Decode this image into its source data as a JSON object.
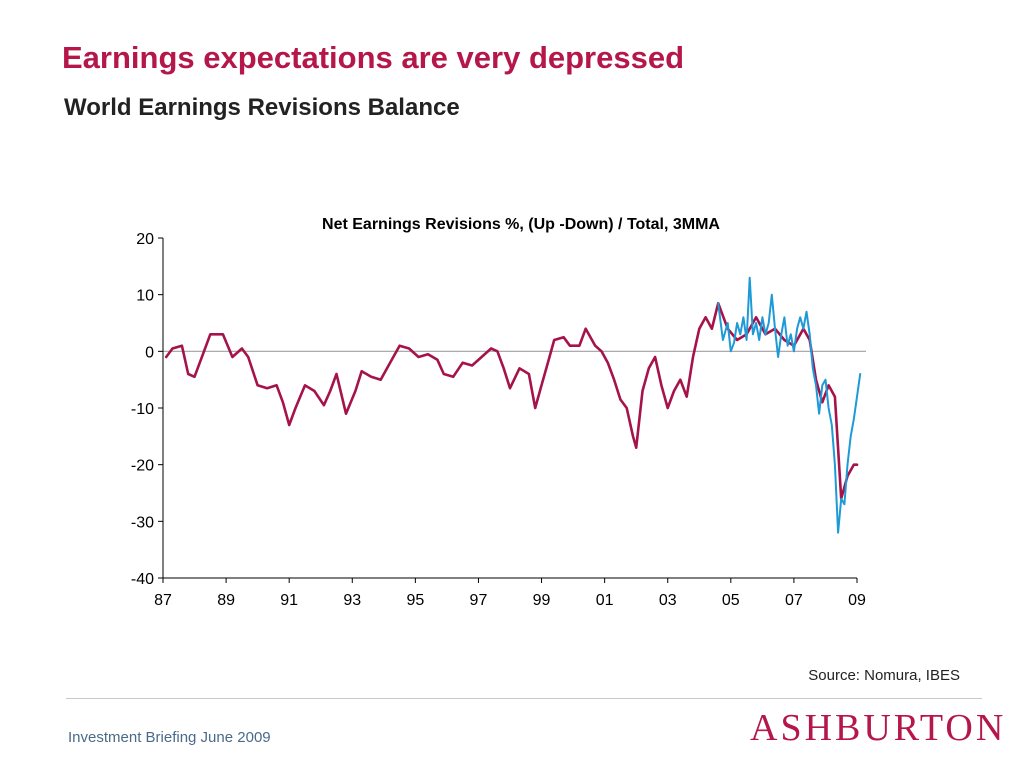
{
  "slide": {
    "title": "Earnings expectations are very depressed",
    "subtitle": "World Earnings Revisions Balance",
    "source": "Source: Nomura, IBES",
    "footer": "Investment Briefing June 2009",
    "logo": "ASHBURTON"
  },
  "colors": {
    "series_a": "#a5134a",
    "series_b": "#1e9ad6",
    "zero_line": "#a0a0a0",
    "title": "#b5174b"
  },
  "chart_data": {
    "type": "line",
    "title": "Net Earnings Revisions %, (Up -Down) / Total, 3MMA",
    "xlabel": "",
    "ylabel": "",
    "xlim": [
      1987,
      2009
    ],
    "ylim": [
      -40,
      20
    ],
    "x_ticks": [
      1987,
      1989,
      1991,
      1993,
      1995,
      1997,
      1999,
      2001,
      2003,
      2005,
      2007,
      2009
    ],
    "x_tick_labels": [
      "87",
      "89",
      "91",
      "93",
      "95",
      "97",
      "99",
      "01",
      "03",
      "05",
      "07",
      "09"
    ],
    "y_ticks": [
      20,
      10,
      0,
      -10,
      -20,
      -30,
      -40
    ],
    "y_tick_labels": [
      "20",
      "10",
      "0",
      "-10",
      "-20",
      "-30",
      "-40"
    ],
    "zero_line": true,
    "grid": false,
    "legend": "none",
    "series": [
      {
        "x": [
          1987.1,
          1987.3,
          1987.6,
          1987.8,
          1988.0,
          1988.3,
          1988.5,
          1988.9,
          1989.2,
          1989.5,
          1989.7,
          1990.0,
          1990.3,
          1990.6,
          1990.8,
          1991.0,
          1991.2,
          1991.5,
          1991.8,
          1992.1,
          1992.3,
          1992.5,
          1992.8,
          1993.1,
          1993.3,
          1993.6,
          1993.9,
          1994.2,
          1994.5,
          1994.8,
          1995.1,
          1995.4,
          1995.7,
          1995.9,
          1996.2,
          1996.5,
          1996.8,
          1997.1,
          1997.4,
          1997.6,
          1997.8,
          1998.0,
          1998.3,
          1998.6,
          1998.8,
          1999.0,
          1999.2,
          1999.4,
          1999.7,
          1999.9,
          2000.2,
          2000.4,
          2000.7,
          2000.9,
          2001.1,
          2001.3,
          2001.5,
          2001.7,
          2001.9,
          2002.0,
          2002.2,
          2002.4,
          2002.6,
          2002.8,
          2003.0,
          2003.2,
          2003.4,
          2003.6,
          2003.8,
          2004.0,
          2004.2,
          2004.4,
          2004.6,
          2004.9,
          2005.2,
          2005.5,
          2005.8,
          2006.1,
          2006.4,
          2006.7,
          2007.0,
          2007.3,
          2007.5,
          2007.7,
          2007.9,
          2008.1,
          2008.3,
          2008.5,
          2008.7,
          2008.9,
          2009.0
        ],
        "values": [
          -1,
          0.5,
          1,
          -4,
          -4.5,
          0,
          3,
          3,
          -1,
          0.5,
          -1,
          -6,
          -6.5,
          -6,
          -9,
          -13,
          -10,
          -6,
          -7,
          -9.5,
          -7,
          -4,
          -11,
          -7,
          -3.5,
          -4.5,
          -5,
          -2,
          1,
          0.5,
          -1,
          -0.5,
          -1.5,
          -4,
          -4.5,
          -2,
          -2.5,
          -1,
          0.5,
          0,
          -3,
          -6.5,
          -3,
          -4,
          -10,
          -6,
          -2,
          2,
          2.5,
          1,
          1,
          4,
          1,
          0,
          -2,
          -5,
          -8.5,
          -10,
          -15,
          -17,
          -7,
          -3,
          -1,
          -6,
          -10,
          -7,
          -5,
          -8,
          -1,
          4,
          6,
          4,
          8.5,
          4,
          2,
          3,
          6,
          3,
          4,
          2,
          1,
          4,
          2,
          -5,
          -9,
          -6,
          -8,
          -26,
          -22,
          -20,
          -20
        ]
      },
      {
        "x": [
          2004.6,
          2004.75,
          2004.9,
          2005.0,
          2005.1,
          2005.2,
          2005.3,
          2005.4,
          2005.5,
          2005.6,
          2005.7,
          2005.8,
          2005.9,
          2006.0,
          2006.1,
          2006.2,
          2006.3,
          2006.4,
          2006.5,
          2006.6,
          2006.7,
          2006.8,
          2006.9,
          2007.0,
          2007.1,
          2007.2,
          2007.3,
          2007.4,
          2007.5,
          2007.6,
          2007.7,
          2007.8,
          2007.9,
          2008.0,
          2008.1,
          2008.2,
          2008.3,
          2008.4,
          2008.5,
          2008.6,
          2008.7,
          2008.8,
          2008.9,
          2009.0,
          2009.1
        ],
        "values": [
          8.5,
          2,
          5,
          0,
          1.5,
          5,
          3,
          6,
          2,
          13,
          3,
          5,
          2,
          6,
          3,
          5,
          10,
          4,
          -1,
          3,
          6,
          1,
          3,
          0,
          4,
          6,
          4,
          7,
          3,
          -3,
          -6,
          -11,
          -6,
          -5,
          -10,
          -13,
          -20,
          -32,
          -26,
          -27,
          -20,
          -15,
          -12,
          -8,
          -4
        ]
      }
    ]
  }
}
